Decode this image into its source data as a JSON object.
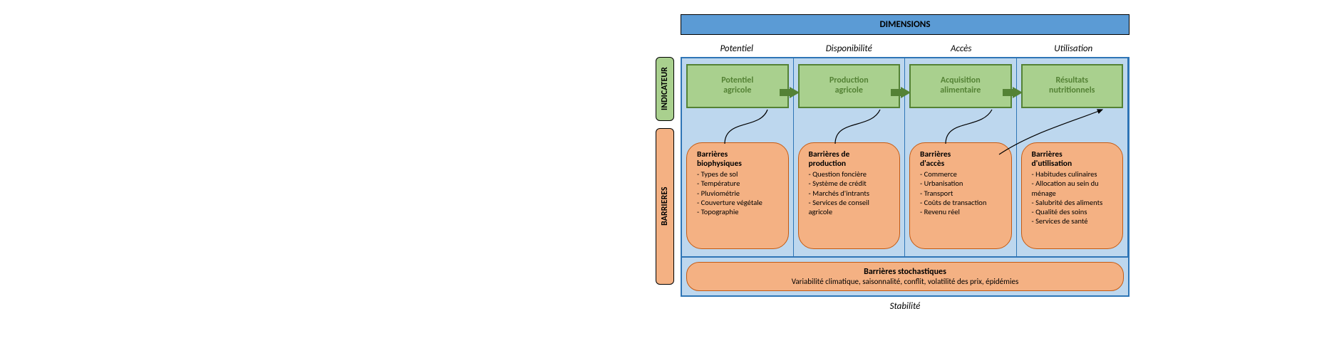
{
  "colors": {
    "blue_header": "#5b9bd5",
    "blue_panel": "#bdd7ee",
    "blue_border": "#2e75b6",
    "green_box": "#a9d08e",
    "green_border": "#548235",
    "green_arrow": "#548235",
    "orange_box": "#f4b183",
    "orange_border": "#c55a11",
    "side_green": "#a9d08e",
    "side_orange": "#f4b183",
    "text": "#000000"
  },
  "header": {
    "dimensions_label": "DIMENSIONS"
  },
  "columns": [
    {
      "header": "Potentiel",
      "indicator": [
        "Potentiel",
        "agricole"
      ]
    },
    {
      "header": "Disponibilité",
      "indicator": [
        "Production",
        "agricole"
      ]
    },
    {
      "header": "Accès",
      "indicator": [
        "Acquisition",
        "alimentaire"
      ]
    },
    {
      "header": "Utilisation",
      "indicator": [
        "Résultats",
        "nutritionnels"
      ]
    }
  ],
  "barriers": [
    {
      "title": [
        "Barrières",
        "biophysiques"
      ],
      "items": [
        "Types de sol",
        "Température",
        "Pluviométrie",
        "Couverture végétale",
        "Topographie"
      ]
    },
    {
      "title": [
        "Barrières de",
        "production"
      ],
      "items": [
        "Question foncière",
        "Système de crédit",
        "Marchés d'intrants",
        "Services de conseil agricole"
      ]
    },
    {
      "title": [
        "Barrières",
        "d'accès"
      ],
      "items": [
        "Commerce",
        "Urbanisation",
        "Transport",
        "Coûts de transaction",
        "Revenu réel"
      ]
    },
    {
      "title": [
        "Barrières",
        "d'utilisation"
      ],
      "items": [
        "Habitudes culinaires",
        "Allocation au sein du ménage",
        "Salubrité des aliments",
        "Qualité des soins",
        "Services de santé"
      ]
    }
  ],
  "stochastic": {
    "title": "Barrières stochastiques",
    "text": "Variabilité climatique, saisonnalité, conflit, volatilité des prix, épidémies"
  },
  "side": {
    "indicateur": "INDICATEUR",
    "barrieres": "BARRIERES"
  },
  "footer": {
    "stability": "Stabilité"
  }
}
